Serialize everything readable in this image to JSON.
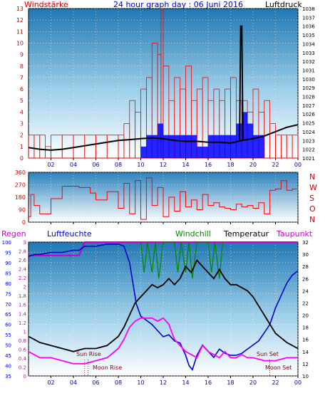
{
  "header": {
    "left_label": "Windstärke",
    "title": "24 hour graph day : 06 Juni 2016",
    "right_label": "Luftdruck"
  },
  "panel2": {
    "directions": [
      "N",
      "W",
      "S",
      "O",
      "N"
    ]
  },
  "panel3_labels": {
    "rain": "Regen",
    "humidity": "Luftfeuchte",
    "windchill": "Windchill",
    "temperature": "Temperatur",
    "dewpoint": "Taupunkt"
  },
  "annotations": {
    "sun_rise": "Sun Rise",
    "moon_rise": "Moon Rise",
    "sun_set": "Sun Set",
    "moon_set": "Moon Set"
  },
  "colors": {
    "wind": "#ff0000",
    "gust": "#0000ff",
    "pressure": "#000000",
    "humidity": "#0000cc",
    "temperature": "#000000",
    "dewpoint": "#ff00ff",
    "windchill": "#008800",
    "rain": "#cc00cc",
    "axis_blue": "#0000cc",
    "axis_red": "#cc0000"
  },
  "chart_data": [
    {
      "type": "bar",
      "name": "wind-and-pressure",
      "x_ticks": [
        "02",
        "04",
        "06",
        "08",
        "10",
        "12",
        "14",
        "16",
        "18",
        "20",
        "22",
        "00"
      ],
      "left_axis": {
        "label": "Windstärke",
        "ticks": [
          0,
          1,
          2,
          3,
          4,
          5,
          6,
          7,
          8,
          9,
          10,
          11,
          12,
          13
        ],
        "ylim": [
          0,
          13
        ]
      },
      "right_axis": {
        "label": "Luftdruck",
        "ticks": [
          1021,
          1022,
          1023,
          1024,
          1025,
          1026,
          1027,
          1028,
          1029,
          1030,
          1031,
          1032,
          1033,
          1034,
          1035,
          1036,
          1037,
          1038
        ],
        "ylim": [
          1021,
          1038
        ]
      },
      "series": [
        {
          "role": "wind",
          "x": [
            0,
            0.5,
            1,
            1.5,
            2,
            3,
            4,
            5,
            6,
            7,
            8,
            8.5,
            9,
            9.5,
            10,
            10.5,
            11,
            11.5,
            11.8,
            12,
            12.5,
            13,
            13.5,
            14,
            14.5,
            15,
            15.5,
            16,
            16.5,
            17,
            17.5,
            18,
            18.5,
            19,
            19.5,
            20,
            20.5,
            21,
            21.5,
            22,
            22.5,
            23,
            23.5,
            24
          ],
          "values": [
            2,
            2,
            2,
            1,
            2,
            2,
            2,
            2,
            2,
            2,
            2,
            3,
            5,
            4,
            6,
            7,
            10,
            9,
            13,
            8,
            5,
            7,
            6,
            8,
            5,
            6,
            7,
            5,
            6,
            5,
            6,
            7,
            5,
            5,
            4,
            6,
            4,
            5,
            3,
            2,
            2,
            2,
            2,
            2
          ]
        },
        {
          "role": "gust",
          "x": [
            10,
            10.5,
            11,
            11.5,
            12,
            13,
            14,
            15,
            16,
            17,
            18,
            18.5,
            19,
            19.5,
            20,
            21
          ],
          "values": [
            1,
            2,
            2,
            3,
            2,
            2,
            2,
            1,
            2,
            2,
            2,
            3,
            4,
            3,
            2,
            1
          ]
        },
        {
          "role": "pressure",
          "x": [
            0,
            1,
            2,
            3,
            4,
            5,
            6,
            7,
            8,
            9,
            10,
            11,
            12,
            13,
            14,
            15,
            16,
            17,
            18,
            19,
            20,
            21,
            22,
            23,
            24
          ],
          "values": [
            1022.2,
            1022.0,
            1021.9,
            1022.0,
            1022.2,
            1022.4,
            1022.6,
            1022.8,
            1023.0,
            1023.1,
            1023.2,
            1023.3,
            1023.2,
            1023.0,
            1022.9,
            1022.9,
            1022.8,
            1022.8,
            1022.7,
            1023.0,
            1023.2,
            1023.5,
            1024.0,
            1024.5,
            1024.8
          ]
        },
        {
          "role": "pressure-spike",
          "x": [
            18.8,
            18.9,
            19.0,
            19.1
          ],
          "values": [
            1023,
            1036,
            1036,
            1023
          ]
        }
      ]
    },
    {
      "type": "line",
      "name": "wind-direction",
      "x_ticks": [
        "02",
        "04",
        "06",
        "08",
        "10",
        "12",
        "14",
        "16",
        "18",
        "20",
        "22",
        "00"
      ],
      "left_axis": {
        "ticks": [
          0,
          90,
          180,
          270,
          360
        ],
        "ylim": [
          0,
          360
        ]
      },
      "right_axis": {
        "ticks": [
          "N",
          "W",
          "S",
          "O",
          "N"
        ]
      },
      "series": [
        {
          "role": "direction",
          "x": [
            0,
            0.2,
            0.5,
            1,
            1.5,
            2,
            2.5,
            3,
            3.5,
            4,
            4.5,
            5,
            5.5,
            6,
            6.5,
            7,
            7.5,
            8,
            8.5,
            9,
            9.5,
            10,
            10.5,
            11,
            11.5,
            12,
            12.5,
            13,
            13.5,
            14,
            14.5,
            15,
            15.5,
            16,
            16.5,
            17,
            17.5,
            18,
            18.5,
            19,
            19.5,
            20,
            20.5,
            21,
            21.5,
            22,
            22.5,
            23,
            23.5,
            24
          ],
          "values": [
            40,
            200,
            120,
            60,
            60,
            170,
            170,
            260,
            260,
            260,
            250,
            250,
            210,
            160,
            160,
            220,
            220,
            100,
            280,
            60,
            300,
            20,
            320,
            120,
            250,
            40,
            180,
            80,
            220,
            110,
            160,
            90,
            200,
            120,
            140,
            110,
            100,
            90,
            130,
            110,
            120,
            100,
            140,
            60,
            230,
            240,
            300,
            230,
            240,
            250
          ]
        }
      ]
    },
    {
      "type": "line",
      "name": "humidity-temperature",
      "x_ticks": [
        "02",
        "04",
        "06",
        "08",
        "10",
        "12",
        "14",
        "16",
        "18",
        "20",
        "22",
        "00"
      ],
      "left_axis_rain": {
        "label": "Regen",
        "ticks": [
          0,
          0.2,
          0.4,
          0.6,
          0.8,
          1,
          1.2,
          1.4,
          1.6,
          1.8,
          2,
          2.2,
          2.4,
          2.6,
          2.8,
          3
        ],
        "ylim": [
          0,
          3
        ]
      },
      "left_axis_humidity": {
        "label": "Luftfeuchte",
        "ticks": [
          35,
          40,
          45,
          50,
          55,
          60,
          65,
          70,
          75,
          80,
          85,
          90,
          95,
          100
        ],
        "ylim": [
          35,
          100
        ]
      },
      "right_axis": {
        "label": "Taupunkt",
        "ticks": [
          10,
          12,
          14,
          16,
          18,
          20,
          22,
          24,
          26,
          28,
          30,
          32
        ],
        "ylim": [
          10,
          32
        ]
      },
      "series": [
        {
          "role": "humidity",
          "x": [
            0,
            0.5,
            1,
            2,
            3,
            4,
            4.5,
            5,
            6,
            7,
            8,
            8.5,
            9,
            9.3,
            9.6,
            10,
            10.5,
            11,
            11.5,
            12,
            12.5,
            13,
            13.5,
            14,
            14.3,
            14.6,
            15,
            15.5,
            16,
            16.5,
            17,
            17.5,
            18,
            18.5,
            19,
            19.5,
            20,
            20.5,
            21,
            21.5,
            22,
            22.5,
            23,
            23.5,
            24
          ],
          "values": [
            93,
            94,
            94,
            95,
            95,
            96,
            96,
            98,
            98,
            99,
            99,
            98,
            90,
            80,
            70,
            64,
            62,
            60,
            57,
            54,
            55,
            52,
            51,
            45,
            40,
            38,
            45,
            50,
            47,
            44,
            48,
            46,
            45,
            45,
            46,
            48,
            50,
            52,
            56,
            60,
            68,
            74,
            80,
            84,
            86
          ]
        },
        {
          "role": "temperature",
          "x": [
            0,
            0.5,
            1,
            2,
            3,
            4,
            5,
            6,
            7,
            8,
            8.5,
            9,
            9.5,
            10,
            10.5,
            11,
            11.5,
            12,
            12.5,
            13,
            13.5,
            14,
            14.5,
            15,
            15.5,
            16,
            16.5,
            17,
            17.5,
            18,
            18.5,
            19,
            19.5,
            20,
            21,
            22,
            23,
            24
          ],
          "values": [
            16.5,
            16,
            15.5,
            15,
            14.5,
            14,
            14.5,
            14.5,
            15,
            16.5,
            18,
            20,
            22,
            23,
            24,
            25,
            24.5,
            25,
            26,
            25,
            26,
            28,
            27,
            29,
            28,
            27,
            26,
            27.5,
            26,
            25,
            25,
            24.5,
            24,
            23,
            20,
            17,
            15.5,
            14.5
          ]
        },
        {
          "role": "dewpoint",
          "x": [
            0,
            0.5,
            1,
            2,
            3,
            4,
            5,
            6,
            7,
            8,
            8.5,
            9,
            9.5,
            10,
            10.5,
            11,
            11.5,
            12,
            12.5,
            13,
            13.5,
            14,
            14.5,
            15,
            15.5,
            16,
            16.5,
            17,
            17.5,
            18,
            18.5,
            19,
            19.5,
            20,
            21,
            22,
            23,
            24
          ],
          "values": [
            14,
            13.5,
            13,
            13,
            12.5,
            12,
            12,
            12.5,
            13,
            14.5,
            16,
            18,
            19,
            19.5,
            19.5,
            19.5,
            19,
            19.5,
            18.5,
            16,
            15,
            14,
            13.5,
            13,
            15,
            14,
            13.5,
            13,
            14,
            13,
            13,
            13.5,
            13,
            13,
            12.5,
            12.5,
            13,
            13
          ]
        },
        {
          "role": "windchill",
          "x": [
            10,
            10.3,
            10.6,
            11,
            11.3,
            11.6,
            12,
            13,
            13.3,
            13.6,
            14,
            14.3,
            14.6,
            15,
            16,
            16.3,
            16.6,
            17,
            17.3
          ],
          "values": [
            32,
            27,
            32,
            27,
            32,
            26,
            32,
            32,
            27,
            32,
            27,
            32,
            26,
            32,
            32,
            27,
            32,
            26,
            32
          ]
        },
        {
          "role": "rain-level",
          "x": [
            0,
            4.5,
            5,
            24
          ],
          "values": [
            2.7,
            2.7,
            3,
            3
          ]
        }
      ]
    }
  ]
}
